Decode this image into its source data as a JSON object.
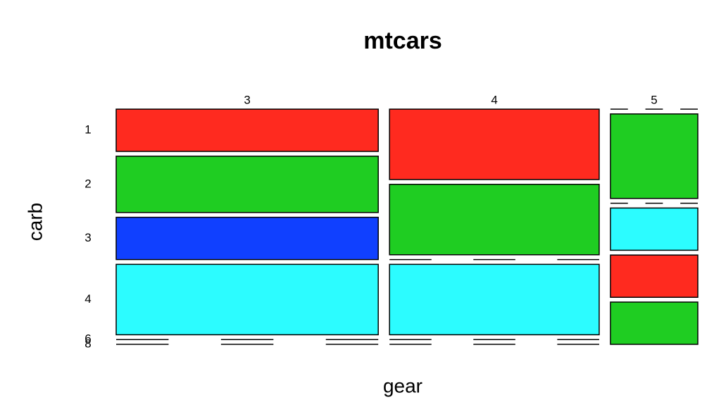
{
  "chart_data": {
    "type": "mosaic",
    "title": "mtcars",
    "x_label": "gear",
    "y_label": "carb",
    "x_categories": [
      "3",
      "4",
      "5"
    ],
    "y_categories": [
      "1",
      "2",
      "3",
      "4",
      "6",
      "8"
    ],
    "counts": [
      [
        3,
        4,
        3,
        5,
        0,
        0
      ],
      [
        4,
        4,
        0,
        4,
        0,
        0
      ],
      [
        0,
        2,
        0,
        1,
        1,
        1
      ]
    ],
    "colors": [
      "#ff2a1f",
      "#1fcd22",
      "#1040ff",
      "#2cfcff",
      "#ff2a1f",
      "#1fcd22"
    ]
  }
}
